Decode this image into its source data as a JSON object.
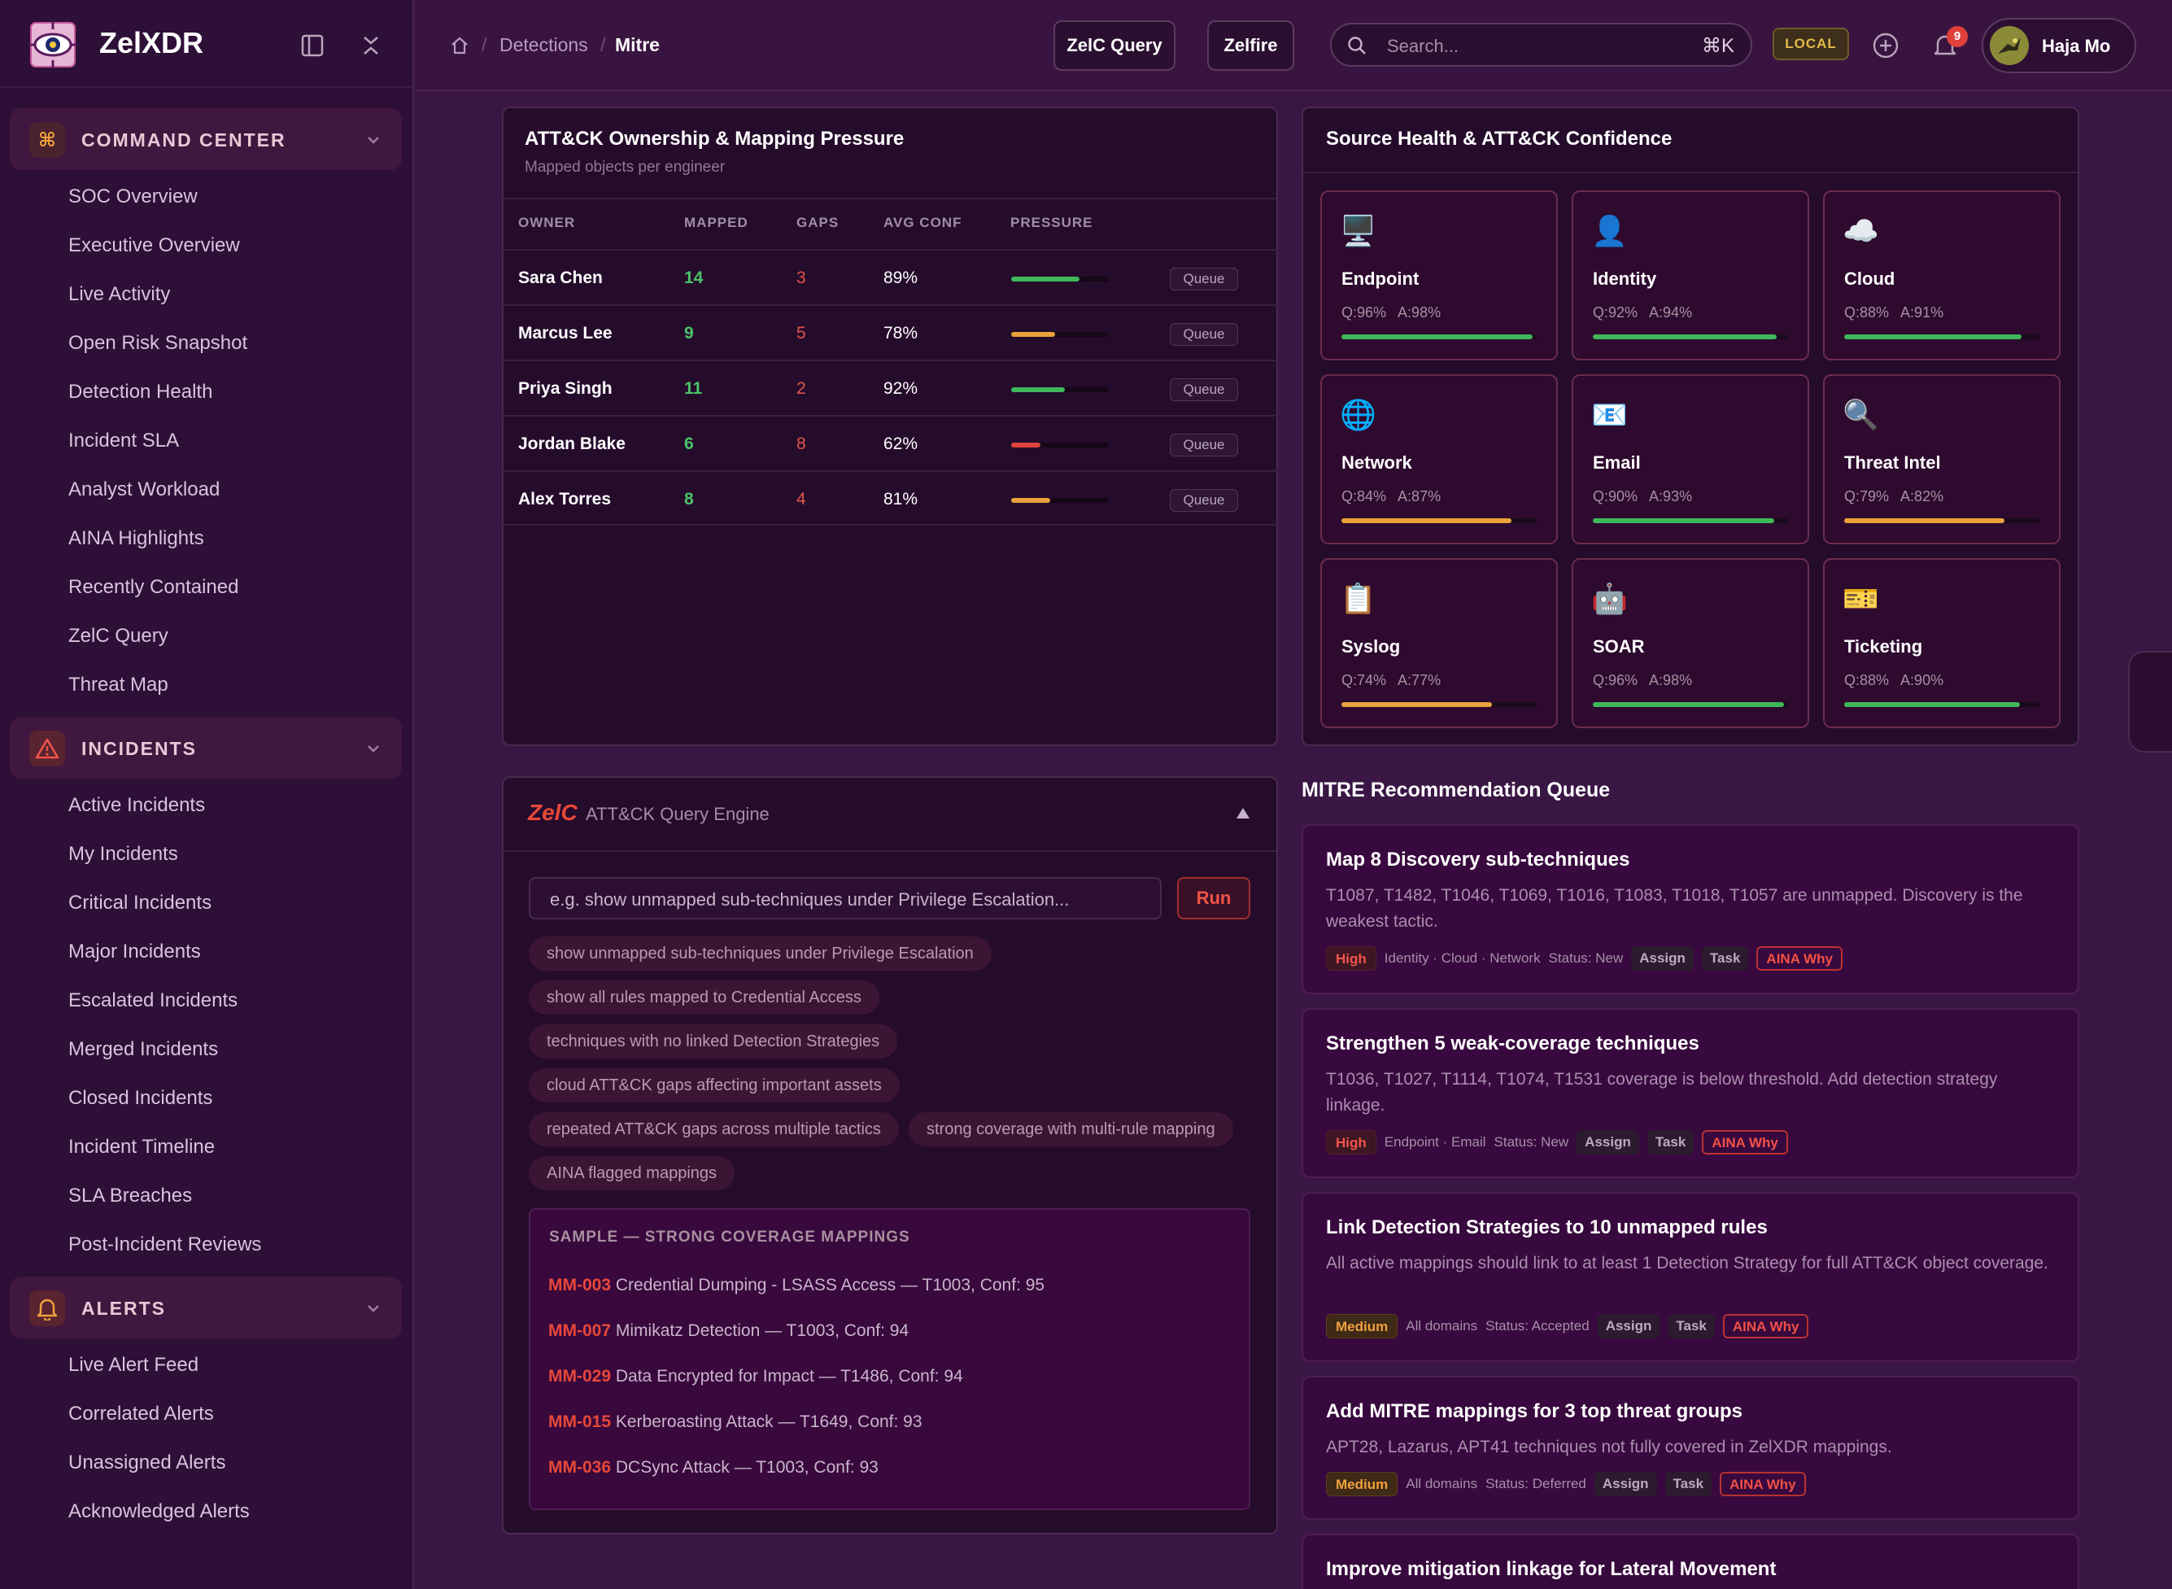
{
  "app": {
    "name": "ZelXDR"
  },
  "sidebar": {
    "groups": [
      {
        "label": "COMMAND CENTER",
        "icon": "command-icon",
        "items": [
          "SOC Overview",
          "Executive Overview",
          "Live Activity",
          "Open Risk Snapshot",
          "Detection Health",
          "Incident SLA",
          "Analyst Workload",
          "AINA Highlights",
          "Recently Contained",
          "ZelC Query",
          "Threat Map"
        ]
      },
      {
        "label": "INCIDENTS",
        "icon": "warning-triangle-icon",
        "items": [
          "Active Incidents",
          "My Incidents",
          "Critical Incidents",
          "Major Incidents",
          "Escalated Incidents",
          "Merged Incidents",
          "Closed Incidents",
          "Incident Timeline",
          "SLA Breaches",
          "Post-Incident Reviews"
        ]
      },
      {
        "label": "ALERTS",
        "icon": "bell-icon",
        "items": [
          "Live Alert Feed",
          "Correlated Alerts",
          "Unassigned Alerts",
          "Acknowledged Alerts"
        ]
      }
    ]
  },
  "topbar": {
    "breadcrumb": [
      "Detections",
      "Mitre"
    ],
    "buttons": [
      "ZelC Query",
      "Zelfire"
    ],
    "search_placeholder": "Search...",
    "search_shortcut": "⌘K",
    "env_badge": "LOCAL",
    "notifications_count": "9",
    "user_name": "Haja Mo"
  },
  "ownership": {
    "title": "ATT&CK Ownership & Mapping Pressure",
    "subtitle": "Mapped objects per engineer",
    "columns": [
      "OWNER",
      "MAPPED",
      "GAPS",
      "AVG CONF",
      "PRESSURE"
    ],
    "queue_label": "Queue",
    "rows": [
      {
        "owner": "Sara Chen",
        "mapped": "14",
        "gaps": "3",
        "conf": "89%",
        "pressure": 0.7,
        "color": "#3fb85a"
      },
      {
        "owner": "Marcus Lee",
        "mapped": "9",
        "gaps": "5",
        "conf": "78%",
        "pressure": 0.45,
        "color": "#e9a23b"
      },
      {
        "owner": "Priya Singh",
        "mapped": "11",
        "gaps": "2",
        "conf": "92%",
        "pressure": 0.55,
        "color": "#3fb85a"
      },
      {
        "owner": "Jordan Blake",
        "mapped": "6",
        "gaps": "8",
        "conf": "62%",
        "pressure": 0.3,
        "color": "#e0443c"
      },
      {
        "owner": "Alex Torres",
        "mapped": "8",
        "gaps": "4",
        "conf": "81%",
        "pressure": 0.4,
        "color": "#e9a23b"
      }
    ]
  },
  "source_health": {
    "title": "Source Health & ATT&CK Confidence",
    "sources": [
      {
        "name": "Endpoint",
        "icon": "🖥️",
        "q": "Q:96%",
        "a": "A:98%",
        "level": 0.98,
        "color": "#3fb85a"
      },
      {
        "name": "Identity",
        "icon": "👤",
        "q": "Q:92%",
        "a": "A:94%",
        "level": 0.94,
        "color": "#3fb85a"
      },
      {
        "name": "Cloud",
        "icon": "☁️",
        "q": "Q:88%",
        "a": "A:91%",
        "level": 0.91,
        "color": "#3fb85a"
      },
      {
        "name": "Network",
        "icon": "🌐",
        "q": "Q:84%",
        "a": "A:87%",
        "level": 0.87,
        "color": "#e9a23b"
      },
      {
        "name": "Email",
        "icon": "📧",
        "q": "Q:90%",
        "a": "A:93%",
        "level": 0.93,
        "color": "#3fb85a"
      },
      {
        "name": "Threat Intel",
        "icon": "🔍",
        "q": "Q:79%",
        "a": "A:82%",
        "level": 0.82,
        "color": "#e9a23b"
      },
      {
        "name": "Syslog",
        "icon": "📋",
        "q": "Q:74%",
        "a": "A:77%",
        "level": 0.77,
        "color": "#e9a23b"
      },
      {
        "name": "SOAR",
        "icon": "🤖",
        "q": "Q:96%",
        "a": "A:98%",
        "level": 0.98,
        "color": "#3fb85a"
      },
      {
        "name": "Ticketing",
        "icon": "🎫",
        "q": "Q:88%",
        "a": "A:90%",
        "level": 0.9,
        "color": "#3fb85a"
      }
    ]
  },
  "query_engine": {
    "brand": "ZelC",
    "title": "ATT&CK Query Engine",
    "placeholder": "e.g. show unmapped sub-techniques under Privilege Escalation...",
    "run_label": "Run",
    "chips": [
      "show unmapped sub-techniques under Privilege Escalation",
      "show all rules mapped to Credential Access",
      "techniques with no linked Detection Strategies",
      "cloud ATT&CK gaps affecting important assets",
      "repeated ATT&CK gaps across multiple tactics",
      "strong coverage with multi-rule mapping",
      "AINA flagged mappings"
    ],
    "sample_title": "SAMPLE — STRONG COVERAGE MAPPINGS",
    "samples": [
      {
        "id": "MM-003",
        "text": "Credential Dumping - LSASS Access — T1003, Conf: 95"
      },
      {
        "id": "MM-007",
        "text": "Mimikatz Detection — T1003, Conf: 94"
      },
      {
        "id": "MM-029",
        "text": "Data Encrypted for Impact — T1486, Conf: 94"
      },
      {
        "id": "MM-015",
        "text": "Kerberoasting Attack — T1649, Conf: 93"
      },
      {
        "id": "MM-036",
        "text": "DCSync Attack — T1003, Conf: 93"
      }
    ]
  },
  "recommendations": {
    "title": "MITRE Recommendation Queue",
    "assign_label": "Assign",
    "task_label": "Task",
    "aina_label": "AINA Why",
    "items": [
      {
        "title": "Map 8 Discovery sub-techniques",
        "desc": "T1087, T1482, T1046, T1069, T1016, T1083, T1018, T1057 are unmapped. Discovery is the weakest tactic.",
        "severity": "High",
        "domains": "Identity · Cloud · Network",
        "status": "Status: New"
      },
      {
        "title": "Strengthen 5 weak-coverage techniques",
        "desc": "T1036, T1027, T1114, T1074, T1531 coverage is below threshold. Add detection strategy linkage.",
        "severity": "High",
        "domains": "Endpoint · Email",
        "status": "Status: New"
      },
      {
        "title": "Link Detection Strategies to 10 unmapped rules",
        "desc": "All active mappings should link to at least 1 Detection Strategy for full ATT&CK object coverage.",
        "severity": "Medium",
        "domains": "All domains",
        "status": "Status: Accepted"
      },
      {
        "title": "Add MITRE mappings for 3 top threat groups",
        "desc": "APT28, Lazarus, APT41 techniques not fully covered in ZelXDR mappings.",
        "severity": "Medium",
        "domains": "All domains",
        "status": "Status: Deferred"
      },
      {
        "title": "Improve mitigation linkage for Lateral Movement",
        "desc": "",
        "severity": "",
        "domains": "",
        "status": ""
      }
    ]
  }
}
